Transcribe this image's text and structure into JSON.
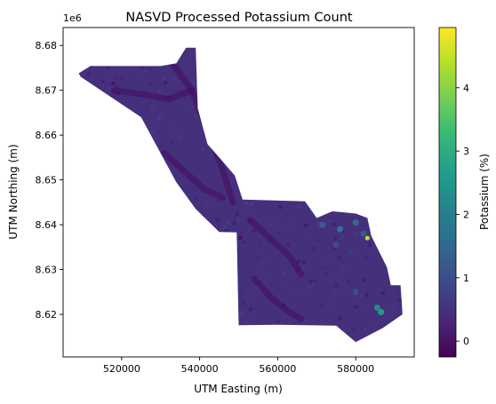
{
  "chart_data": {
    "type": "heatmap",
    "title": "NASVD Processed Potassium Count",
    "xlabel": "UTM Easting (m)",
    "ylabel": "UTM Northing (m)",
    "y_offset_label": "1e6",
    "xlim": [
      505000,
      595000
    ],
    "ylim": [
      8610500,
      8684000
    ],
    "x_ticks": [
      520000,
      540000,
      560000,
      580000
    ],
    "x_tick_labels": [
      "520000",
      "540000",
      "560000",
      "580000"
    ],
    "y_ticks": [
      8620000,
      8630000,
      8640000,
      8650000,
      8660000,
      8670000,
      8680000
    ],
    "y_tick_labels": [
      "8.62",
      "8.63",
      "8.64",
      "8.65",
      "8.66",
      "8.67",
      "8.68"
    ],
    "grid": false,
    "colorbar": {
      "label": "Potassium (%)",
      "colormap": "viridis",
      "range": [
        -0.25,
        4.95
      ],
      "ticks": [
        0,
        1,
        2,
        3,
        4
      ],
      "tick_labels": [
        "0",
        "1",
        "2",
        "3",
        "4"
      ],
      "colors": [
        "#440154",
        "#482878",
        "#3e4989",
        "#31688e",
        "#26828e",
        "#1f9e89",
        "#35b779",
        "#6ece58",
        "#b5de2b",
        "#fde725"
      ]
    },
    "survey_outline": [
      [
        509000,
        8673800
      ],
      [
        512000,
        8675400
      ],
      [
        530000,
        8675400
      ],
      [
        534000,
        8676000
      ],
      [
        536500,
        8679500
      ],
      [
        539000,
        8679500
      ],
      [
        539500,
        8666000
      ],
      [
        542000,
        8658000
      ],
      [
        549000,
        8651000
      ],
      [
        551000,
        8645600
      ],
      [
        567000,
        8645200
      ],
      [
        570000,
        8641500
      ],
      [
        574000,
        8643000
      ],
      [
        580000,
        8642500
      ],
      [
        583000,
        8641500
      ],
      [
        584000,
        8637500
      ],
      [
        588000,
        8630500
      ],
      [
        589000,
        8626500
      ],
      [
        591500,
        8626500
      ],
      [
        592000,
        8620000
      ],
      [
        587000,
        8617000
      ],
      [
        580000,
        8613800
      ],
      [
        575000,
        8617500
      ],
      [
        560000,
        8617700
      ],
      [
        550000,
        8617600
      ],
      [
        549500,
        8638300
      ],
      [
        545000,
        8638400
      ],
      [
        539000,
        8643500
      ],
      [
        534000,
        8649500
      ],
      [
        525000,
        8664000
      ],
      [
        509500,
        8673000
      ]
    ],
    "features": [
      {
        "kind": "low",
        "pts": [
          [
            533000,
            8676000
          ],
          [
            538000,
            8670000
          ],
          [
            543000,
            8659000
          ],
          [
            546000,
            8652000
          ],
          [
            548500,
            8645000
          ]
        ]
      },
      {
        "kind": "low",
        "pts": [
          [
            518000,
            8670000
          ],
          [
            526000,
            8669000
          ],
          [
            532000,
            8668000
          ],
          [
            538000,
            8670000
          ]
        ]
      },
      {
        "kind": "low",
        "pts": [
          [
            531000,
            8656000
          ],
          [
            536000,
            8652000
          ],
          [
            541000,
            8648000
          ],
          [
            546000,
            8646000
          ]
        ]
      },
      {
        "kind": "low",
        "pts": [
          [
            553000,
            8641000
          ],
          [
            558000,
            8637000
          ],
          [
            563000,
            8633000
          ],
          [
            566000,
            8629000
          ]
        ]
      },
      {
        "kind": "low",
        "pts": [
          [
            554000,
            8628000
          ],
          [
            558000,
            8624000
          ],
          [
            562000,
            8621000
          ],
          [
            566000,
            8619000
          ]
        ]
      }
    ],
    "anomalies": [
      {
        "x": 576000,
        "y": 8639000,
        "value": 1.8
      },
      {
        "x": 580000,
        "y": 8640500,
        "value": 1.6
      },
      {
        "x": 571500,
        "y": 8640000,
        "value": 1.3
      },
      {
        "x": 582000,
        "y": 8638000,
        "value": 1.2
      },
      {
        "x": 575000,
        "y": 8635500,
        "value": 1.0
      },
      {
        "x": 583000,
        "y": 8637000,
        "value": 4.5
      },
      {
        "x": 585500,
        "y": 8621500,
        "value": 2.2
      },
      {
        "x": 586500,
        "y": 8620500,
        "value": 2.6
      },
      {
        "x": 580000,
        "y": 8625000,
        "value": 1.0
      },
      {
        "x": 569000,
        "y": 8643500,
        "value": 0.9
      }
    ],
    "background_value": 0.45
  }
}
